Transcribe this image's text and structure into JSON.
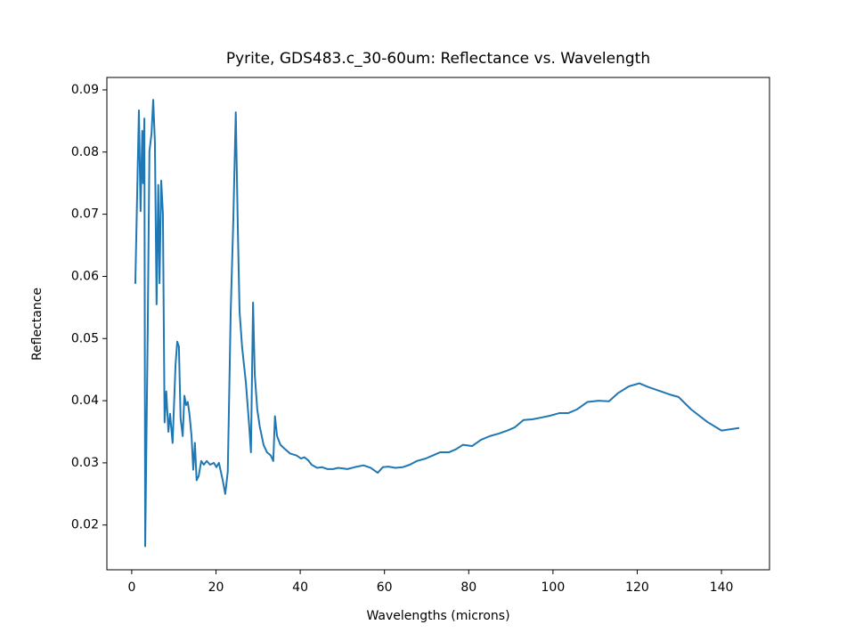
{
  "chart_data": {
    "type": "line",
    "title": "Pyrite, GDS483.c_30-60um: Reflectance vs. Wavelength",
    "xlabel": "Wavelengths (microns)",
    "ylabel": "Reflectance",
    "color": "#1f77b4",
    "x": [
      0.85,
      1.7,
      2.1,
      2.5,
      2.7,
      3.0,
      3.2,
      3.8,
      4.2,
      4.7,
      5.1,
      5.5,
      5.9,
      6.3,
      6.6,
      7.0,
      7.4,
      7.8,
      8.2,
      8.7,
      9.1,
      9.7,
      10.4,
      10.8,
      11.2,
      11.6,
      12.1,
      12.5,
      12.9,
      13.3,
      13.7,
      14.2,
      14.6,
      15.0,
      15.4,
      15.9,
      16.5,
      17.1,
      17.8,
      18.6,
      19.5,
      20.1,
      20.7,
      21.6,
      22.2,
      22.8,
      23.5,
      24.1,
      24.7,
      25.2,
      25.6,
      26.2,
      27.1,
      27.9,
      28.3,
      28.8,
      29.2,
      29.8,
      30.4,
      31.3,
      32.1,
      33.0,
      33.6,
      34.0,
      34.5,
      35.3,
      36.4,
      37.6,
      39.1,
      40.2,
      41.0,
      41.9,
      42.7,
      44.0,
      45.2,
      46.5,
      47.8,
      49.0,
      51.2,
      52.9,
      55.0,
      56.7,
      58.4,
      59.6,
      60.9,
      62.6,
      64.3,
      66.0,
      67.7,
      69.8,
      71.5,
      73.2,
      75.3,
      77.0,
      78.6,
      80.8,
      82.9,
      85.0,
      87.1,
      89.2,
      90.9,
      93.0,
      95.1,
      97.3,
      99.4,
      101.5,
      103.6,
      105.7,
      108.2,
      110.8,
      113.3,
      115.4,
      118.0,
      120.5,
      122.6,
      125.2,
      127.7,
      129.8,
      132.8,
      136.6,
      140.0,
      144.2
    ],
    "values": [
      0.0588,
      0.0867,
      0.0705,
      0.0834,
      0.075,
      0.0854,
      0.0166,
      0.0515,
      0.0801,
      0.083,
      0.0884,
      0.0816,
      0.0555,
      0.0747,
      0.0589,
      0.0754,
      0.0701,
      0.0365,
      0.0415,
      0.035,
      0.0379,
      0.0332,
      0.0458,
      0.0495,
      0.0487,
      0.0372,
      0.0343,
      0.0408,
      0.0393,
      0.0398,
      0.0379,
      0.0343,
      0.0289,
      0.0332,
      0.0272,
      0.0279,
      0.0303,
      0.0297,
      0.0303,
      0.0297,
      0.03,
      0.0293,
      0.03,
      0.0272,
      0.025,
      0.0286,
      0.0544,
      0.0687,
      0.0864,
      0.0672,
      0.0544,
      0.0486,
      0.0429,
      0.0358,
      0.0317,
      0.0558,
      0.0443,
      0.0386,
      0.0358,
      0.0329,
      0.0317,
      0.0312,
      0.0303,
      0.0375,
      0.0343,
      0.0329,
      0.0322,
      0.0315,
      0.0312,
      0.0307,
      0.0309,
      0.0304,
      0.0297,
      0.0292,
      0.0293,
      0.029,
      0.029,
      0.0292,
      0.029,
      0.0293,
      0.0296,
      0.0292,
      0.0284,
      0.0293,
      0.0294,
      0.0292,
      0.0293,
      0.0297,
      0.0303,
      0.0307,
      0.0312,
      0.0317,
      0.0317,
      0.0322,
      0.0329,
      0.0327,
      0.0337,
      0.0343,
      0.0347,
      0.0352,
      0.0357,
      0.0369,
      0.037,
      0.0373,
      0.0376,
      0.038,
      0.038,
      0.0386,
      0.0398,
      0.04,
      0.0399,
      0.0412,
      0.0423,
      0.0428,
      0.0422,
      0.0416,
      0.041,
      0.0406,
      0.0386,
      0.0366,
      0.0352,
      0.0356
    ],
    "xlim": [
      -5.9,
      151.4
    ],
    "xticks": [
      0,
      20,
      40,
      60,
      80,
      100,
      120,
      140
    ],
    "ylim": [
      0.0128,
      0.092
    ],
    "yticks": [
      0.02,
      0.03,
      0.04,
      0.05,
      0.06,
      0.07,
      0.08,
      0.09
    ],
    "grid": false
  }
}
